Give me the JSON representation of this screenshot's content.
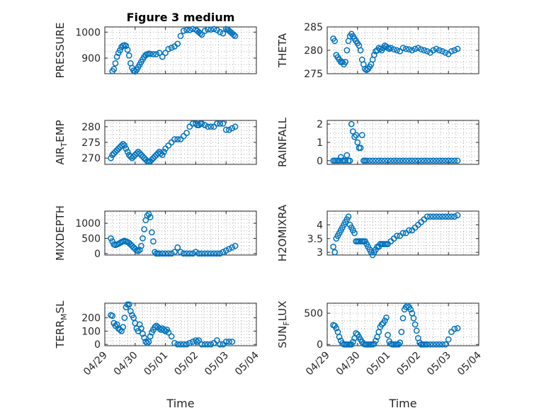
{
  "colors": {
    "marker": "#0072BD",
    "axis": "#262626",
    "grid": "#b0b0b0"
  },
  "chart_data": {
    "type": "scatter",
    "title": "Figure 3 medium",
    "x_tick_labels": [
      "04/29",
      "04/30",
      "05/01",
      "05/02",
      "05/03",
      "05/04"
    ],
    "x_range_days": [
      0,
      5
    ],
    "xlabel": "Time",
    "grid": true,
    "marker": "open-circle",
    "subplots": [
      {
        "id": "pressure",
        "ylabel": "PRESSURE",
        "title": "Figure 3 medium",
        "ylim": [
          840,
          1020
        ],
        "yticks": [
          900,
          1000
        ],
        "ytick_labels": [
          "900",
          "1000"
        ],
        "x": [
          0.25,
          0.3,
          0.35,
          0.4,
          0.45,
          0.5,
          0.55,
          0.6,
          0.65,
          0.7,
          0.75,
          0.8,
          0.85,
          0.9,
          0.95,
          1.0,
          1.05,
          1.1,
          1.15,
          1.2,
          1.25,
          1.3,
          1.35,
          1.4,
          1.45,
          1.5,
          1.6,
          1.7,
          1.8,
          1.9,
          2.0,
          2.1,
          2.2,
          2.3,
          2.4,
          2.5,
          2.6,
          2.7,
          2.8,
          2.9,
          3.0,
          3.05,
          3.1,
          3.15,
          3.2,
          3.3,
          3.4,
          3.5,
          3.6,
          3.7,
          3.8,
          3.9,
          4.0,
          4.05,
          4.1,
          4.15,
          4.2,
          4.25,
          4.3
        ],
        "y": [
          850,
          858,
          880,
          905,
          920,
          930,
          942,
          948,
          950,
          947,
          932,
          910,
          880,
          862,
          852,
          848,
          855,
          865,
          875,
          885,
          895,
          905,
          912,
          915,
          917,
          916,
          915,
          915,
          920,
          905,
          920,
          935,
          940,
          945,
          955,
          985,
          1005,
          1008,
          1008,
          1012,
          1010,
          1005,
          1000,
          995,
          990,
          1005,
          1010,
          1010,
          1012,
          1008,
          1000,
          995,
          1012,
          1010,
          1005,
          1000,
          995,
          990,
          985
        ]
      },
      {
        "id": "theta",
        "ylabel": "THETA",
        "ylim": [
          275,
          285
        ],
        "yticks": [
          275,
          280,
          285
        ],
        "ytick_labels": [
          "275",
          "280",
          "285"
        ],
        "x": [
          0.2,
          0.25,
          0.3,
          0.35,
          0.4,
          0.45,
          0.5,
          0.55,
          0.6,
          0.65,
          0.7,
          0.75,
          0.8,
          0.85,
          0.9,
          0.95,
          1.0,
          1.05,
          1.1,
          1.15,
          1.2,
          1.25,
          1.3,
          1.35,
          1.4,
          1.45,
          1.5,
          1.55,
          1.6,
          1.65,
          1.7,
          1.75,
          1.8,
          1.85,
          1.9,
          1.95,
          2.0,
          2.05,
          2.1,
          2.2,
          2.3,
          2.4,
          2.5,
          2.6,
          2.7,
          2.8,
          2.9,
          3.0,
          3.1,
          3.2,
          3.3,
          3.4,
          3.5,
          3.6,
          3.7,
          3.8,
          3.9,
          4.0,
          4.1,
          4.2,
          4.3
        ],
        "y": [
          282.5,
          282,
          279,
          278.5,
          278,
          277.5,
          277.5,
          277,
          277.5,
          280,
          282,
          283,
          283.5,
          283,
          282.5,
          282,
          281.5,
          281,
          280,
          278,
          277,
          276,
          275.8,
          276,
          276.5,
          277,
          278,
          279,
          279.8,
          280,
          280.5,
          280.3,
          280,
          280.5,
          281,
          280.8,
          280.5,
          280.3,
          280.5,
          280.2,
          280,
          279.8,
          280.5,
          280.3,
          280.2,
          280,
          280.3,
          280.5,
          280.2,
          280,
          279.8,
          279.5,
          280,
          280.3,
          280,
          279.8,
          279.5,
          279.2,
          279.8,
          280,
          280.3
        ]
      },
      {
        "id": "air_temp",
        "ylabel": "AIR_TEMP",
        "ylabel_main": "AIR",
        "ylabel_sub": "T",
        "ylabel_rest": "EMP",
        "ylim": [
          268,
          282
        ],
        "yticks": [
          270,
          275,
          280
        ],
        "ytick_labels": [
          "270",
          "275",
          "280"
        ],
        "x": [
          0.2,
          0.25,
          0.3,
          0.35,
          0.4,
          0.45,
          0.5,
          0.55,
          0.6,
          0.65,
          0.7,
          0.75,
          0.8,
          0.85,
          0.9,
          0.95,
          1.0,
          1.05,
          1.1,
          1.15,
          1.2,
          1.25,
          1.3,
          1.35,
          1.4,
          1.45,
          1.5,
          1.55,
          1.6,
          1.65,
          1.7,
          1.75,
          1.8,
          1.85,
          1.9,
          1.95,
          2.0,
          2.1,
          2.2,
          2.3,
          2.4,
          2.5,
          2.6,
          2.7,
          2.8,
          2.9,
          3.0,
          3.05,
          3.1,
          3.15,
          3.2,
          3.3,
          3.4,
          3.5,
          3.6,
          3.7,
          3.8,
          3.9,
          4.0,
          4.1,
          4.2,
          4.3
        ],
        "y": [
          270,
          271,
          271.5,
          272,
          272.5,
          273,
          273.5,
          274,
          274.5,
          274,
          273,
          272,
          271,
          270.5,
          270,
          270.5,
          271,
          271.5,
          272,
          271.5,
          271,
          270.5,
          270,
          269.5,
          269,
          268.8,
          269,
          269.5,
          270,
          270.5,
          271,
          271.5,
          272,
          271.5,
          271,
          272,
          273,
          274,
          275,
          276,
          276,
          276,
          277,
          278,
          280,
          281,
          281,
          280.5,
          280.5,
          281,
          281,
          280.5,
          280,
          280,
          280,
          281,
          281,
          281,
          279,
          279,
          279.5,
          280
        ]
      },
      {
        "id": "rainfall",
        "ylabel": "RAINFALL",
        "ylim": [
          -0.2,
          2.2
        ],
        "yticks": [
          0,
          1,
          2
        ],
        "ytick_labels": [
          "0",
          "1",
          "2"
        ],
        "x": [
          0.2,
          0.25,
          0.3,
          0.35,
          0.4,
          0.45,
          0.5,
          0.55,
          0.6,
          0.65,
          0.7,
          0.75,
          0.8,
          0.85,
          0.9,
          0.95,
          1.0,
          1.05,
          1.1,
          1.15,
          1.2,
          1.25,
          1.3,
          1.4,
          1.5,
          1.6,
          1.7,
          1.8,
          1.9,
          2.0,
          2.1,
          2.2,
          2.3,
          2.4,
          2.5,
          2.6,
          2.7,
          2.8,
          2.9,
          3.0,
          3.1,
          3.2,
          3.3,
          3.4,
          3.5,
          3.6,
          3.7,
          3.8,
          3.9,
          4.0,
          4.1,
          4.2,
          4.3
        ],
        "y": [
          0,
          0,
          0,
          0,
          0,
          0.2,
          0,
          0,
          0,
          0.3,
          0,
          0,
          2.0,
          1.6,
          1.3,
          1.4,
          1.0,
          0.7,
          0.7,
          1.4,
          0,
          0,
          0,
          0,
          0,
          0,
          0,
          0,
          0,
          0,
          0,
          0,
          0,
          0,
          0,
          0,
          0,
          0,
          0,
          0,
          0,
          0,
          0,
          0,
          0,
          0,
          0,
          0,
          0,
          0,
          0,
          0,
          0
        ]
      },
      {
        "id": "mixdepth",
        "ylabel": "MIXDEPTH",
        "ylim": [
          -50,
          1400
        ],
        "yticks": [
          0,
          500,
          1000
        ],
        "ytick_labels": [
          "0",
          "500",
          "1000"
        ],
        "x": [
          0.2,
          0.25,
          0.3,
          0.35,
          0.4,
          0.45,
          0.5,
          0.55,
          0.6,
          0.65,
          0.7,
          0.75,
          0.8,
          0.85,
          0.9,
          0.95,
          1.0,
          1.05,
          1.1,
          1.15,
          1.2,
          1.25,
          1.3,
          1.35,
          1.4,
          1.45,
          1.5,
          1.55,
          1.6,
          1.65,
          1.7,
          1.75,
          1.8,
          1.9,
          2.0,
          2.1,
          2.2,
          2.3,
          2.4,
          2.5,
          2.6,
          2.7,
          2.8,
          2.9,
          3.0,
          3.1,
          3.2,
          3.3,
          3.4,
          3.5,
          3.6,
          3.7,
          3.8,
          3.9,
          4.0,
          4.1,
          4.2,
          4.3
        ],
        "y": [
          500,
          400,
          300,
          280,
          300,
          320,
          350,
          380,
          400,
          420,
          400,
          380,
          350,
          300,
          250,
          200,
          150,
          100,
          80,
          120,
          250,
          500,
          800,
          1100,
          1250,
          1300,
          1200,
          700,
          400,
          50,
          0,
          0,
          0,
          0,
          0,
          0,
          0,
          50,
          200,
          50,
          0,
          0,
          0,
          0,
          50,
          0,
          0,
          0,
          0,
          0,
          0,
          0,
          0,
          50,
          100,
          150,
          200,
          250
        ]
      },
      {
        "id": "h2omixra",
        "ylabel": "H2OMIXRA",
        "ylim": [
          2.9,
          4.5
        ],
        "yticks": [
          3,
          3.5,
          4
        ],
        "ytick_labels": [
          "3",
          "3.5",
          "4"
        ],
        "x": [
          0.2,
          0.25,
          0.3,
          0.35,
          0.4,
          0.45,
          0.5,
          0.55,
          0.6,
          0.65,
          0.7,
          0.75,
          0.8,
          0.85,
          0.9,
          0.95,
          1.0,
          1.05,
          1.1,
          1.15,
          1.2,
          1.25,
          1.3,
          1.35,
          1.4,
          1.45,
          1.5,
          1.55,
          1.6,
          1.65,
          1.7,
          1.75,
          1.8,
          1.85,
          1.9,
          1.95,
          2.0,
          2.1,
          2.2,
          2.3,
          2.4,
          2.5,
          2.6,
          2.7,
          2.8,
          2.9,
          3.0,
          3.1,
          3.2,
          3.3,
          3.4,
          3.5,
          3.6,
          3.7,
          3.8,
          3.9,
          4.0,
          4.1,
          4.2,
          4.3
        ],
        "y": [
          3.2,
          3.0,
          3.5,
          3.6,
          3.7,
          3.8,
          3.9,
          4.0,
          4.1,
          4.2,
          4.3,
          4.0,
          3.9,
          3.8,
          3.7,
          3.4,
          3.4,
          3.4,
          3.4,
          3.4,
          3.4,
          3.4,
          3.3,
          3.2,
          3.1,
          3.0,
          2.9,
          3.0,
          3.1,
          3.2,
          3.2,
          3.3,
          3.3,
          3.3,
          3.3,
          3.3,
          3.3,
          3.4,
          3.5,
          3.6,
          3.6,
          3.7,
          3.7,
          3.8,
          3.8,
          3.9,
          4.0,
          4.1,
          4.2,
          4.3,
          4.3,
          4.3,
          4.3,
          4.3,
          4.3,
          4.3,
          4.3,
          4.3,
          4.3,
          4.35
        ]
      },
      {
        "id": "terr_msl",
        "ylabel": "TERR_MSL",
        "ylabel_main": "TERR",
        "ylabel_sub": "M",
        "ylabel_rest": "SL",
        "ylim": [
          -10,
          310
        ],
        "yticks": [
          0,
          100,
          200
        ],
        "ytick_labels": [
          "0",
          "100",
          "200"
        ],
        "x": [
          0.2,
          0.25,
          0.3,
          0.35,
          0.4,
          0.45,
          0.5,
          0.55,
          0.6,
          0.65,
          0.7,
          0.75,
          0.8,
          0.85,
          0.9,
          0.95,
          1.0,
          1.05,
          1.1,
          1.15,
          1.2,
          1.25,
          1.3,
          1.35,
          1.4,
          1.45,
          1.5,
          1.55,
          1.6,
          1.65,
          1.7,
          1.75,
          1.8,
          1.85,
          1.9,
          1.95,
          2.0,
          2.05,
          2.1,
          2.2,
          2.3,
          2.4,
          2.5,
          2.6,
          2.7,
          2.8,
          2.9,
          3.0,
          3.05,
          3.1,
          3.2,
          3.3,
          3.4,
          3.5,
          3.6,
          3.7,
          3.8,
          3.9,
          4.0,
          4.1,
          4.2
        ],
        "y": [
          220,
          215,
          160,
          140,
          150,
          120,
          110,
          100,
          130,
          200,
          280,
          300,
          300,
          250,
          220,
          200,
          160,
          120,
          100,
          150,
          120,
          80,
          50,
          20,
          10,
          20,
          60,
          90,
          110,
          130,
          140,
          130,
          120,
          110,
          120,
          110,
          100,
          110,
          90,
          60,
          10,
          0,
          0,
          0,
          0,
          10,
          20,
          30,
          20,
          30,
          0,
          0,
          0,
          0,
          10,
          30,
          0,
          0,
          20,
          20,
          20
        ]
      },
      {
        "id": "sun_flux",
        "ylabel": "SUN_FLUX",
        "ylabel_main": "SUN",
        "ylabel_sub": "F",
        "ylabel_rest": "LUX",
        "ylim": [
          -20,
          660
        ],
        "yticks": [
          0,
          500
        ],
        "ytick_labels": [
          "0",
          "500"
        ],
        "x": [
          0.2,
          0.25,
          0.3,
          0.35,
          0.4,
          0.45,
          0.5,
          0.55,
          0.6,
          0.65,
          0.7,
          0.75,
          0.8,
          0.85,
          0.9,
          0.95,
          1.0,
          1.05,
          1.1,
          1.15,
          1.2,
          1.25,
          1.3,
          1.35,
          1.4,
          1.45,
          1.5,
          1.55,
          1.6,
          1.65,
          1.7,
          1.75,
          1.8,
          1.85,
          1.9,
          1.95,
          2.0,
          2.05,
          2.1,
          2.15,
          2.2,
          2.25,
          2.3,
          2.35,
          2.4,
          2.45,
          2.5,
          2.55,
          2.6,
          2.65,
          2.7,
          2.75,
          2.8,
          2.85,
          2.9,
          2.95,
          3.0,
          3.05,
          3.1,
          3.15,
          3.2,
          3.25,
          3.3,
          3.4,
          3.5,
          3.6,
          3.7,
          3.8,
          3.9,
          4.0,
          4.1,
          4.2,
          4.3
        ],
        "y": [
          310,
          300,
          260,
          200,
          120,
          60,
          20,
          0,
          0,
          0,
          0,
          0,
          0,
          40,
          100,
          180,
          160,
          120,
          80,
          40,
          10,
          0,
          0,
          0,
          0,
          0,
          0,
          10,
          60,
          120,
          200,
          280,
          320,
          340,
          380,
          430,
          150,
          50,
          10,
          0,
          0,
          0,
          0,
          0,
          30,
          200,
          420,
          560,
          600,
          620,
          600,
          560,
          500,
          420,
          320,
          220,
          100,
          30,
          0,
          0,
          0,
          0,
          0,
          0,
          0,
          0,
          0,
          0,
          0,
          80,
          200,
          250,
          260
        ]
      }
    ]
  }
}
